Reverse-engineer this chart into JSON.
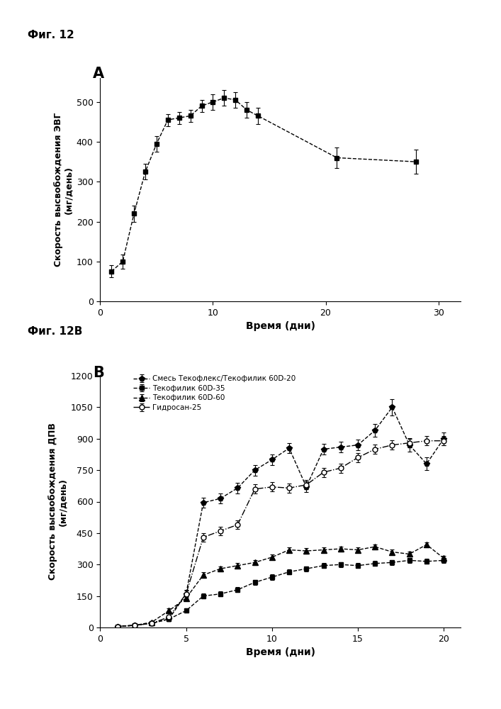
{
  "fig_label_A": "Фиг. 12",
  "fig_label_B": "Фиг. 12B",
  "panel_A_label": "A",
  "panel_B_label": "B",
  "chartA": {
    "xlabel": "Время (дни)",
    "ylabel": "Скорость высвобождения ЭВГ\n(мг/день)",
    "xlim": [
      0,
      32
    ],
    "ylim": [
      0,
      560
    ],
    "xticks": [
      0,
      10,
      20,
      30
    ],
    "yticks": [
      0,
      100,
      200,
      300,
      400,
      500
    ],
    "x": [
      1,
      2,
      3,
      4,
      5,
      6,
      7,
      8,
      9,
      10,
      11,
      12,
      13,
      14,
      21,
      28
    ],
    "y": [
      75,
      100,
      220,
      325,
      395,
      455,
      460,
      465,
      490,
      500,
      510,
      505,
      480,
      465,
      360,
      350
    ],
    "yerr": [
      15,
      18,
      20,
      20,
      20,
      15,
      15,
      15,
      15,
      20,
      20,
      20,
      20,
      20,
      25,
      30
    ]
  },
  "chartB": {
    "xlabel": "Время (дни)",
    "ylabel": "Скорость высвобождения ДПВ\n(мг/день)",
    "xlim": [
      0,
      21
    ],
    "ylim": [
      0,
      1200
    ],
    "xticks": [
      0,
      5,
      10,
      15,
      20
    ],
    "yticks": [
      0,
      150,
      300,
      450,
      600,
      750,
      900,
      1050,
      1200
    ],
    "series": [
      {
        "label": "Смесь Текофлекс/Текофилик 60D-20",
        "marker": "p",
        "linestyle": "--",
        "mfc": "black",
        "x": [
          1,
          2,
          3,
          4,
          5,
          6,
          7,
          8,
          9,
          10,
          11,
          12,
          13,
          14,
          15,
          16,
          17,
          18,
          19,
          20
        ],
        "y": [
          5,
          10,
          20,
          40,
          160,
          595,
          615,
          665,
          750,
          800,
          855,
          670,
          850,
          860,
          870,
          940,
          1050,
          870,
          780,
          900
        ],
        "yerr": [
          3,
          5,
          8,
          10,
          20,
          25,
          25,
          25,
          25,
          25,
          25,
          25,
          25,
          25,
          25,
          30,
          40,
          30,
          30,
          30
        ]
      },
      {
        "label": "Текофилик 60D-35",
        "marker": "s",
        "linestyle": "--",
        "mfc": "black",
        "x": [
          1,
          2,
          3,
          4,
          5,
          6,
          7,
          8,
          9,
          10,
          11,
          12,
          13,
          14,
          15,
          16,
          17,
          18,
          19,
          20
        ],
        "y": [
          5,
          10,
          20,
          40,
          80,
          150,
          160,
          180,
          215,
          240,
          265,
          280,
          295,
          300,
          295,
          305,
          310,
          320,
          315,
          320
        ],
        "yerr": [
          3,
          4,
          5,
          8,
          10,
          12,
          12,
          12,
          12,
          12,
          12,
          12,
          12,
          12,
          12,
          12,
          12,
          12,
          12,
          12
        ]
      },
      {
        "label": "Текофилик 60D-60",
        "marker": "^",
        "linestyle": "--",
        "mfc": "black",
        "x": [
          1,
          2,
          3,
          4,
          5,
          6,
          7,
          8,
          9,
          10,
          11,
          12,
          13,
          14,
          15,
          16,
          17,
          18,
          19,
          20
        ],
        "y": [
          5,
          10,
          25,
          80,
          140,
          250,
          280,
          295,
          310,
          335,
          370,
          365,
          370,
          375,
          370,
          385,
          360,
          350,
          395,
          330
        ],
        "yerr": [
          3,
          4,
          5,
          10,
          12,
          12,
          12,
          12,
          12,
          12,
          12,
          12,
          12,
          12,
          12,
          12,
          12,
          12,
          12,
          12
        ]
      },
      {
        "label": "Гидросан-25",
        "marker": "o",
        "linestyle": "-.",
        "mfc": "white",
        "x": [
          1,
          2,
          3,
          4,
          5,
          6,
          7,
          8,
          9,
          10,
          11,
          12,
          13,
          14,
          15,
          16,
          17,
          18,
          19,
          20
        ],
        "y": [
          5,
          10,
          20,
          50,
          160,
          430,
          460,
          490,
          660,
          670,
          665,
          680,
          740,
          760,
          810,
          850,
          870,
          880,
          890,
          890
        ],
        "yerr": [
          3,
          4,
          5,
          8,
          15,
          20,
          20,
          20,
          22,
          22,
          22,
          22,
          22,
          22,
          22,
          22,
          22,
          22,
          22,
          22
        ]
      }
    ]
  },
  "bg_color": "#ffffff",
  "font_size": 9,
  "label_font_size": 10,
  "tick_font_size": 9
}
